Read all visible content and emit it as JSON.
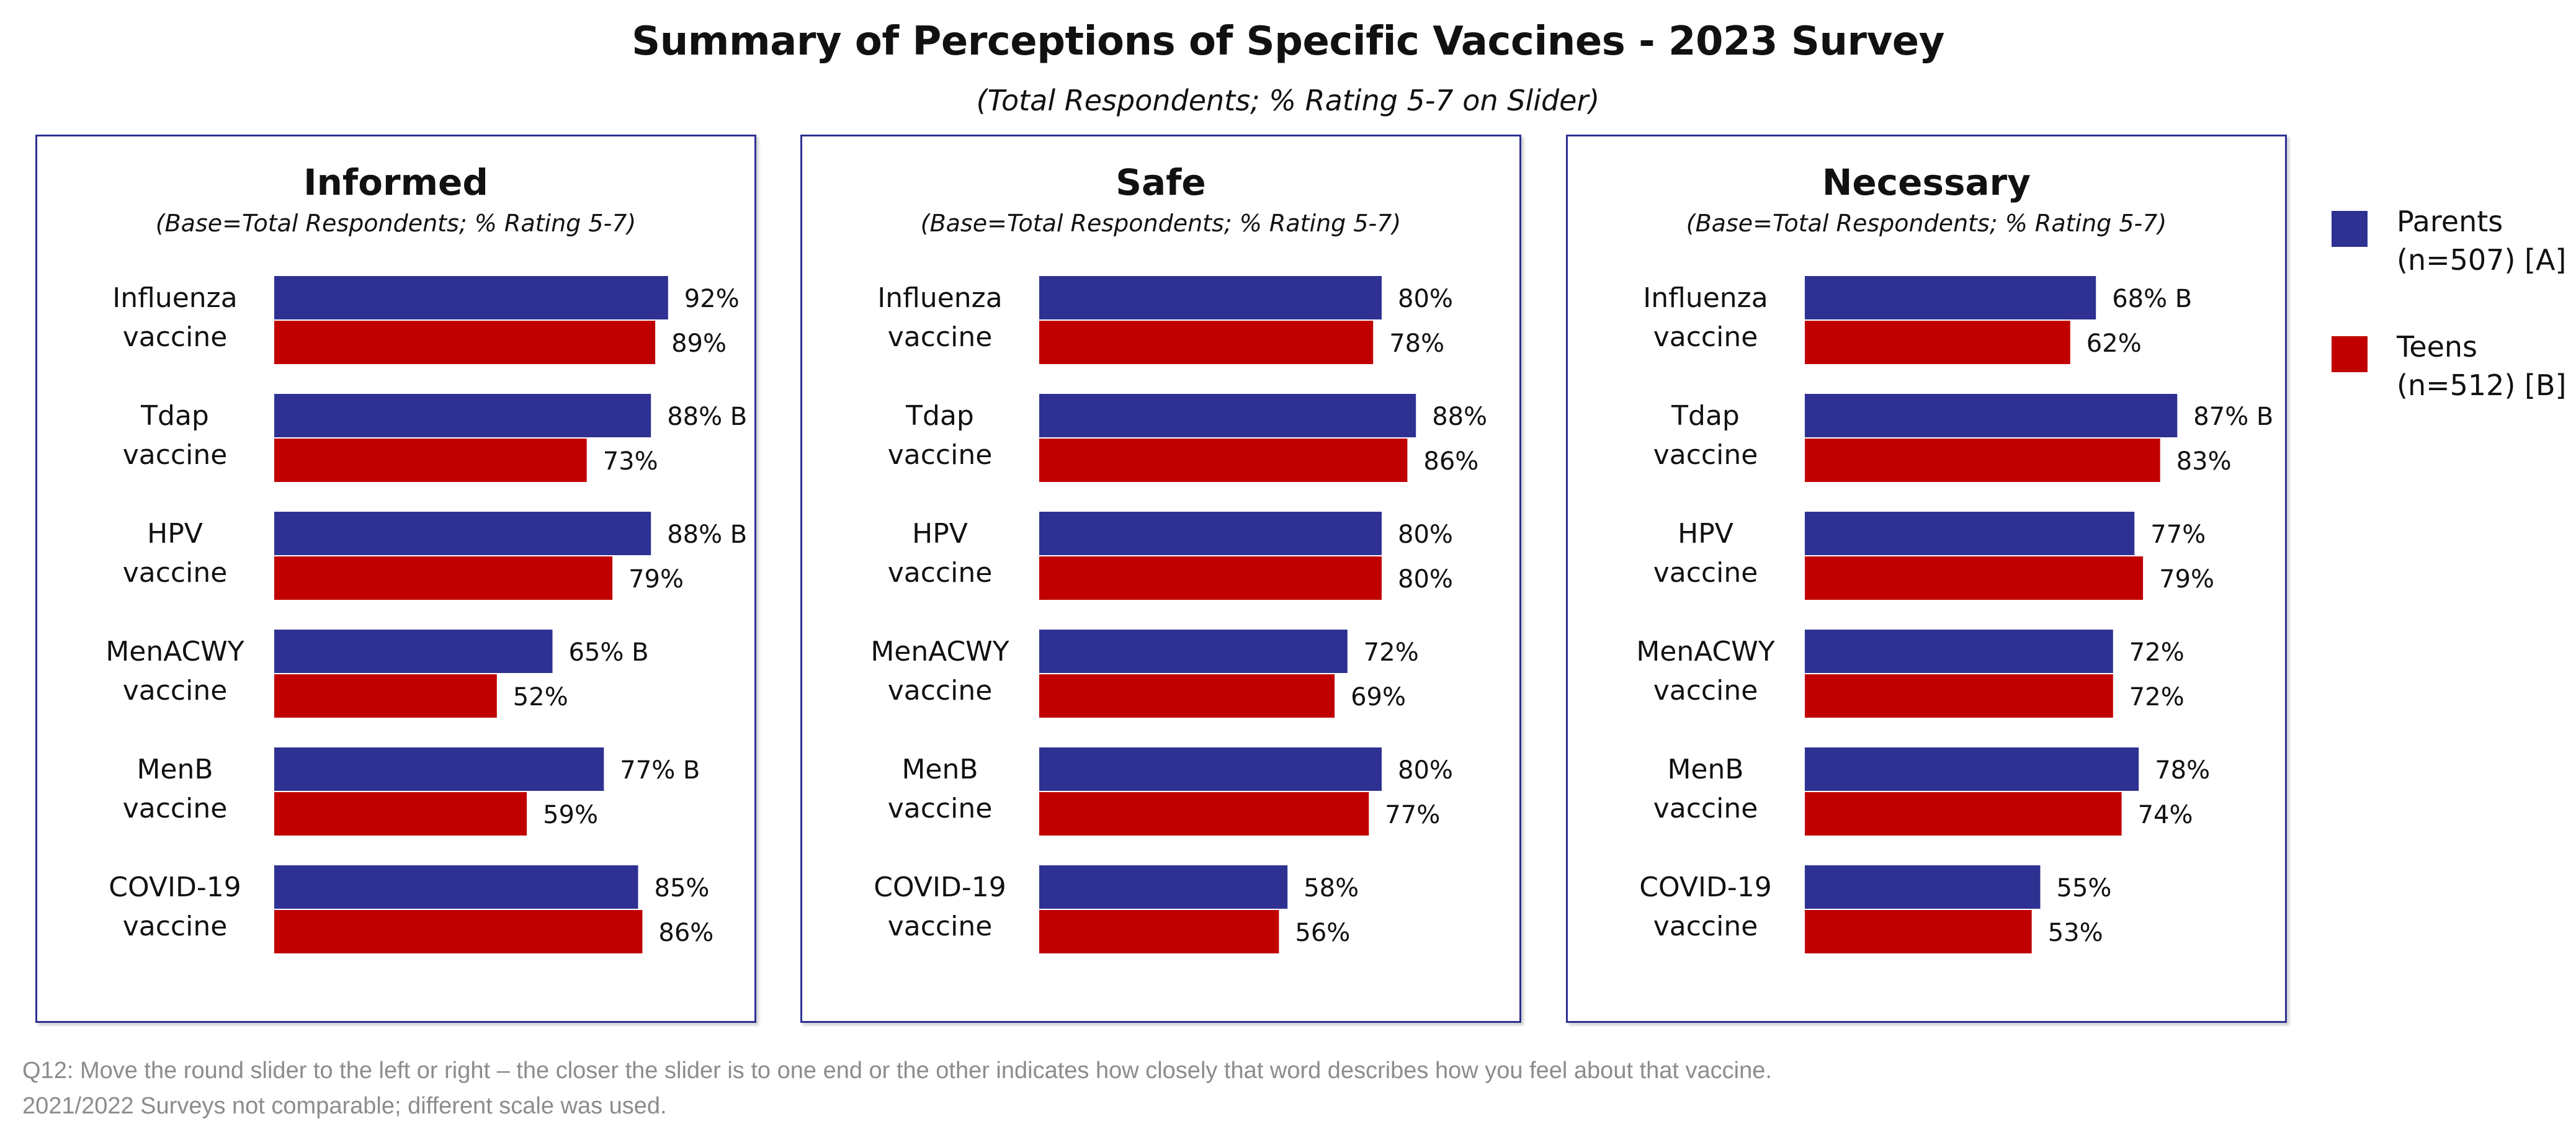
{
  "title": "Summary of Perceptions of Specific Vaccines - 2023 Survey",
  "subtitle": "(Total Respondents; % Rating 5-7 on Slider)",
  "legend": [
    {
      "label": "Parents (n=507) [A]",
      "color": "#2E3192"
    },
    {
      "label": "Teens (n=512) [B]",
      "color": "#C00000"
    }
  ],
  "footnotes": [
    "Q12: Move the round slider to the left or right – the closer the slider is to one end or the other indicates how closely that word describes how you feel about that vaccine.",
    "2021/2022 Surveys not comparable; different scale was used."
  ],
  "chart_data": [
    {
      "type": "bar",
      "orientation": "horizontal",
      "title": "Informed",
      "subtitle": "(Base=Total Respondents; % Rating 5-7)",
      "categories": [
        "Influenza vaccine",
        "Tdap vaccine",
        "HPV vaccine",
        "MenACWY vaccine",
        "MenB vaccine",
        "COVID-19 vaccine"
      ],
      "category_lines": [
        [
          "Influenza",
          "vaccine"
        ],
        [
          "Tdap",
          "vaccine"
        ],
        [
          "HPV",
          "vaccine"
        ],
        [
          "MenACWY",
          "vaccine"
        ],
        [
          "MenB",
          "vaccine"
        ],
        [
          "COVID-19",
          "vaccine"
        ]
      ],
      "series": [
        {
          "name": "Parents (n=507) [A]",
          "color": "#2E3192",
          "values": [
            92,
            88,
            88,
            65,
            77,
            85
          ],
          "labels": [
            "92%",
            "88% B",
            "88% B",
            "65% B",
            "77% B",
            "85%"
          ]
        },
        {
          "name": "Teens (n=512) [B]",
          "color": "#C00000",
          "values": [
            89,
            73,
            79,
            52,
            59,
            86
          ],
          "labels": [
            "89%",
            "73%",
            "79%",
            "52%",
            "59%",
            "86%"
          ]
        }
      ],
      "xlim": [
        0,
        100
      ],
      "grid": false
    },
    {
      "type": "bar",
      "orientation": "horizontal",
      "title": "Safe",
      "subtitle": "(Base=Total Respondents; % Rating 5-7)",
      "categories": [
        "Influenza vaccine",
        "Tdap vaccine",
        "HPV vaccine",
        "MenACWY vaccine",
        "MenB vaccine",
        "COVID-19 vaccine"
      ],
      "category_lines": [
        [
          "Influenza",
          "vaccine"
        ],
        [
          "Tdap",
          "vaccine"
        ],
        [
          "HPV",
          "vaccine"
        ],
        [
          "MenACWY",
          "vaccine"
        ],
        [
          "MenB",
          "vaccine"
        ],
        [
          "COVID-19",
          "vaccine"
        ]
      ],
      "series": [
        {
          "name": "Parents (n=507) [A]",
          "color": "#2E3192",
          "values": [
            80,
            88,
            80,
            72,
            80,
            58
          ],
          "labels": [
            "80%",
            "88%",
            "80%",
            "72%",
            "80%",
            "58%"
          ]
        },
        {
          "name": "Teens (n=512) [B]",
          "color": "#C00000",
          "values": [
            78,
            86,
            80,
            69,
            77,
            56
          ],
          "labels": [
            "78%",
            "86%",
            "80%",
            "69%",
            "77%",
            "56%"
          ]
        }
      ],
      "xlim": [
        0,
        100
      ],
      "grid": false
    },
    {
      "type": "bar",
      "orientation": "horizontal",
      "title": "Necessary",
      "subtitle": "(Base=Total Respondents; % Rating 5-7)",
      "categories": [
        "Influenza vaccine",
        "Tdap vaccine",
        "HPV vaccine",
        "MenACWY vaccine",
        "MenB vaccine",
        "COVID-19 vaccine"
      ],
      "category_lines": [
        [
          "Influenza",
          "vaccine"
        ],
        [
          "Tdap",
          "vaccine"
        ],
        [
          "HPV",
          "vaccine"
        ],
        [
          "MenACWY",
          "vaccine"
        ],
        [
          "MenB",
          "vaccine"
        ],
        [
          "COVID-19",
          "vaccine"
        ]
      ],
      "series": [
        {
          "name": "Parents (n=507) [A]",
          "color": "#2E3192",
          "values": [
            68,
            87,
            77,
            72,
            78,
            55
          ],
          "labels": [
            "68% B",
            "87% B",
            "77%",
            "72%",
            "78%",
            "55%"
          ]
        },
        {
          "name": "Teens (n=512) [B]",
          "color": "#C00000",
          "values": [
            62,
            83,
            79,
            72,
            74,
            53
          ],
          "labels": [
            "62%",
            "83%",
            "79%",
            "72%",
            "74%",
            "53%"
          ]
        }
      ],
      "xlim": [
        0,
        100
      ],
      "grid": false
    }
  ]
}
